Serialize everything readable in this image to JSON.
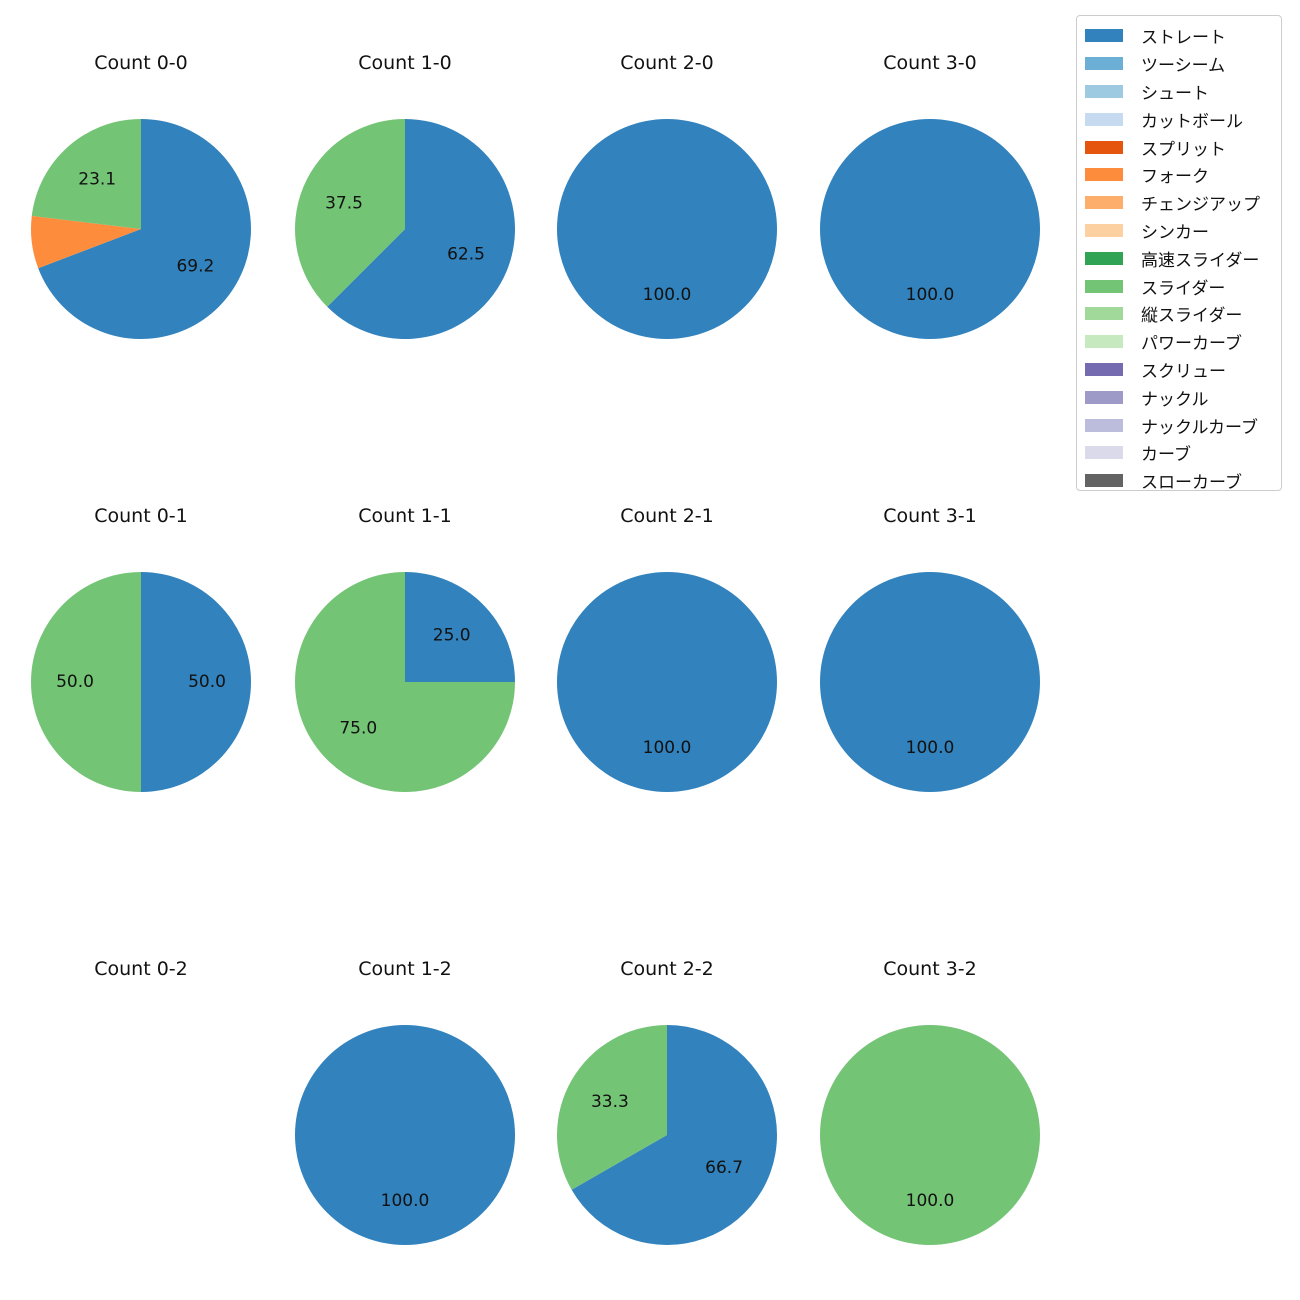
{
  "legend": {
    "items": [
      {
        "label": "ストレート",
        "color": "#3182bd"
      },
      {
        "label": "ツーシーム",
        "color": "#6baed6"
      },
      {
        "label": "シュート",
        "color": "#9ecae1"
      },
      {
        "label": "カットボール",
        "color": "#c6dbef"
      },
      {
        "label": "スプリット",
        "color": "#e6550d"
      },
      {
        "label": "フォーク",
        "color": "#fd8d3c"
      },
      {
        "label": "チェンジアップ",
        "color": "#fdae6b"
      },
      {
        "label": "シンカー",
        "color": "#fdd0a2"
      },
      {
        "label": "高速スライダー",
        "color": "#31a354"
      },
      {
        "label": "スライダー",
        "color": "#74c476"
      },
      {
        "label": "縦スライダー",
        "color": "#a1d99b"
      },
      {
        "label": "パワーカーブ",
        "color": "#c7e9c0"
      },
      {
        "label": "スクリュー",
        "color": "#756bb1"
      },
      {
        "label": "ナックル",
        "color": "#9e9ac8"
      },
      {
        "label": "ナックルカーブ",
        "color": "#bcbddc"
      },
      {
        "label": "カーブ",
        "color": "#dadaeb"
      },
      {
        "label": "スローカーブ",
        "color": "#636363"
      }
    ]
  },
  "chart_data": [
    {
      "type": "pie",
      "title": "Count 0-0",
      "slices": [
        {
          "label": "ストレート",
          "value": 69.2
        },
        {
          "label": "フォーク",
          "value": 7.7
        },
        {
          "label": "スライダー",
          "value": 23.1
        }
      ],
      "data_labels": [
        "69.2",
        "",
        "23.1"
      ]
    },
    {
      "type": "pie",
      "title": "Count 1-0",
      "slices": [
        {
          "label": "ストレート",
          "value": 62.5
        },
        {
          "label": "スライダー",
          "value": 37.5
        }
      ],
      "data_labels": [
        "62.5",
        "37.5"
      ]
    },
    {
      "type": "pie",
      "title": "Count 2-0",
      "slices": [
        {
          "label": "ストレート",
          "value": 100.0
        }
      ],
      "data_labels": [
        "100.0"
      ]
    },
    {
      "type": "pie",
      "title": "Count 3-0",
      "slices": [
        {
          "label": "ストレート",
          "value": 100.0
        }
      ],
      "data_labels": [
        "100.0"
      ]
    },
    {
      "type": "pie",
      "title": "Count 0-1",
      "slices": [
        {
          "label": "ストレート",
          "value": 50.0
        },
        {
          "label": "スライダー",
          "value": 50.0
        }
      ],
      "data_labels": [
        "50.0",
        "50.0"
      ]
    },
    {
      "type": "pie",
      "title": "Count 1-1",
      "slices": [
        {
          "label": "ストレート",
          "value": 25.0
        },
        {
          "label": "スライダー",
          "value": 75.0
        }
      ],
      "data_labels": [
        "25.0",
        "75.0"
      ]
    },
    {
      "type": "pie",
      "title": "Count 2-1",
      "slices": [
        {
          "label": "ストレート",
          "value": 100.0
        }
      ],
      "data_labels": [
        "100.0"
      ]
    },
    {
      "type": "pie",
      "title": "Count 3-1",
      "slices": [
        {
          "label": "ストレート",
          "value": 100.0
        }
      ],
      "data_labels": [
        "100.0"
      ]
    },
    {
      "type": "pie",
      "title": "Count 0-2",
      "slices": [],
      "data_labels": []
    },
    {
      "type": "pie",
      "title": "Count 1-2",
      "slices": [
        {
          "label": "ストレート",
          "value": 100.0
        }
      ],
      "data_labels": [
        "100.0"
      ]
    },
    {
      "type": "pie",
      "title": "Count 2-2",
      "slices": [
        {
          "label": "ストレート",
          "value": 66.7
        },
        {
          "label": "スライダー",
          "value": 33.3
        }
      ],
      "data_labels": [
        "66.7",
        "33.3"
      ]
    },
    {
      "type": "pie",
      "title": "Count 3-2",
      "slices": [
        {
          "label": "スライダー",
          "value": 100.0
        }
      ],
      "data_labels": [
        "100.0"
      ]
    }
  ]
}
